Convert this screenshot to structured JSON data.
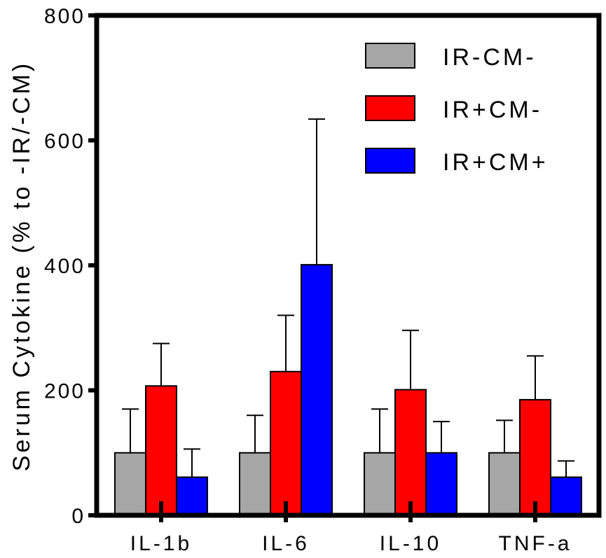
{
  "chart_data": {
    "type": "bar",
    "title": "",
    "xlabel": "",
    "ylabel": "Serum Cytokine (% to -IR/-CM)",
    "ylim": [
      0,
      800
    ],
    "yticks": [
      "0",
      "200",
      "400",
      "600",
      "800"
    ],
    "ytick_values": [
      0,
      200,
      400,
      600,
      800
    ],
    "categories": [
      "IL-1b",
      "IL-6",
      "IL-10",
      "TNF-a"
    ],
    "grid": false,
    "legend_position": "top-right",
    "series": [
      {
        "name": "IR-CM-",
        "color": "#a6a6a6",
        "values": [
          100,
          100,
          100,
          100
        ],
        "errors": [
          70,
          60,
          70,
          52
        ]
      },
      {
        "name": "IR+CM-",
        "color": "#ff0000",
        "values": [
          207,
          230,
          201,
          185
        ],
        "errors": [
          68,
          90,
          95,
          70
        ]
      },
      {
        "name": "IR+CM+",
        "color": "#0000ff",
        "values": [
          61,
          401,
          100,
          61
        ],
        "errors": [
          45,
          233,
          50,
          26
        ]
      }
    ]
  }
}
